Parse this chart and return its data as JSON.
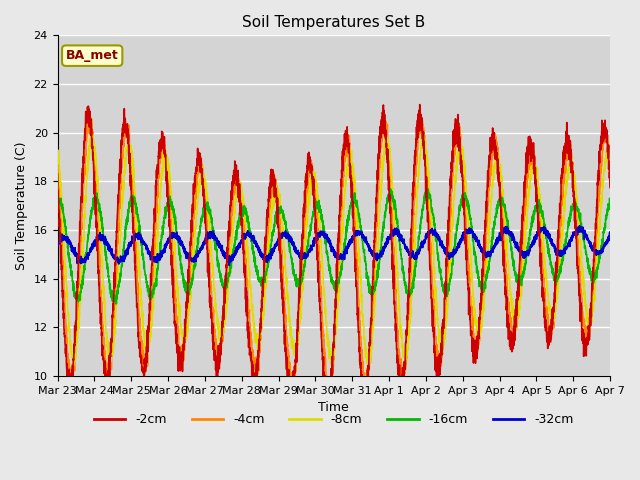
{
  "title": "Soil Temperatures Set B",
  "xlabel": "Time",
  "ylabel": "Soil Temperature (C)",
  "ylim": [
    10,
    24
  ],
  "xlim_start": 0,
  "xlim_end": 360,
  "x_tick_labels": [
    "Mar 23",
    "Mar 24",
    "Mar 25",
    "Mar 26",
    "Mar 27",
    "Mar 28",
    "Mar 29",
    "Mar 30",
    "Mar 31",
    "Apr 1",
    "Apr 2",
    "Apr 3",
    "Apr 4",
    "Apr 5",
    "Apr 6",
    "Apr 7"
  ],
  "x_tick_positions": [
    0,
    24,
    48,
    72,
    96,
    120,
    144,
    168,
    192,
    216,
    240,
    264,
    288,
    312,
    336,
    360
  ],
  "ytick_labels": [
    "10",
    "12",
    "14",
    "16",
    "18",
    "20",
    "22",
    "24"
  ],
  "ytick_positions": [
    10,
    12,
    14,
    16,
    18,
    20,
    22,
    24
  ],
  "colors": {
    "neg2cm": "#cc0000",
    "neg4cm": "#ff8800",
    "neg8cm": "#dddd00",
    "neg16cm": "#00bb00",
    "neg32cm": "#0000cc"
  },
  "legend_labels": [
    "-2cm",
    "-4cm",
    "-8cm",
    "-16cm",
    "-32cm"
  ],
  "annotation_text": "BA_met",
  "background_color": "#e8e8e8",
  "plot_bg_color": "#d4d4d4",
  "linewidth": 1.2,
  "title_fontsize": 11,
  "label_fontsize": 9,
  "tick_fontsize": 8,
  "legend_fontsize": 9
}
